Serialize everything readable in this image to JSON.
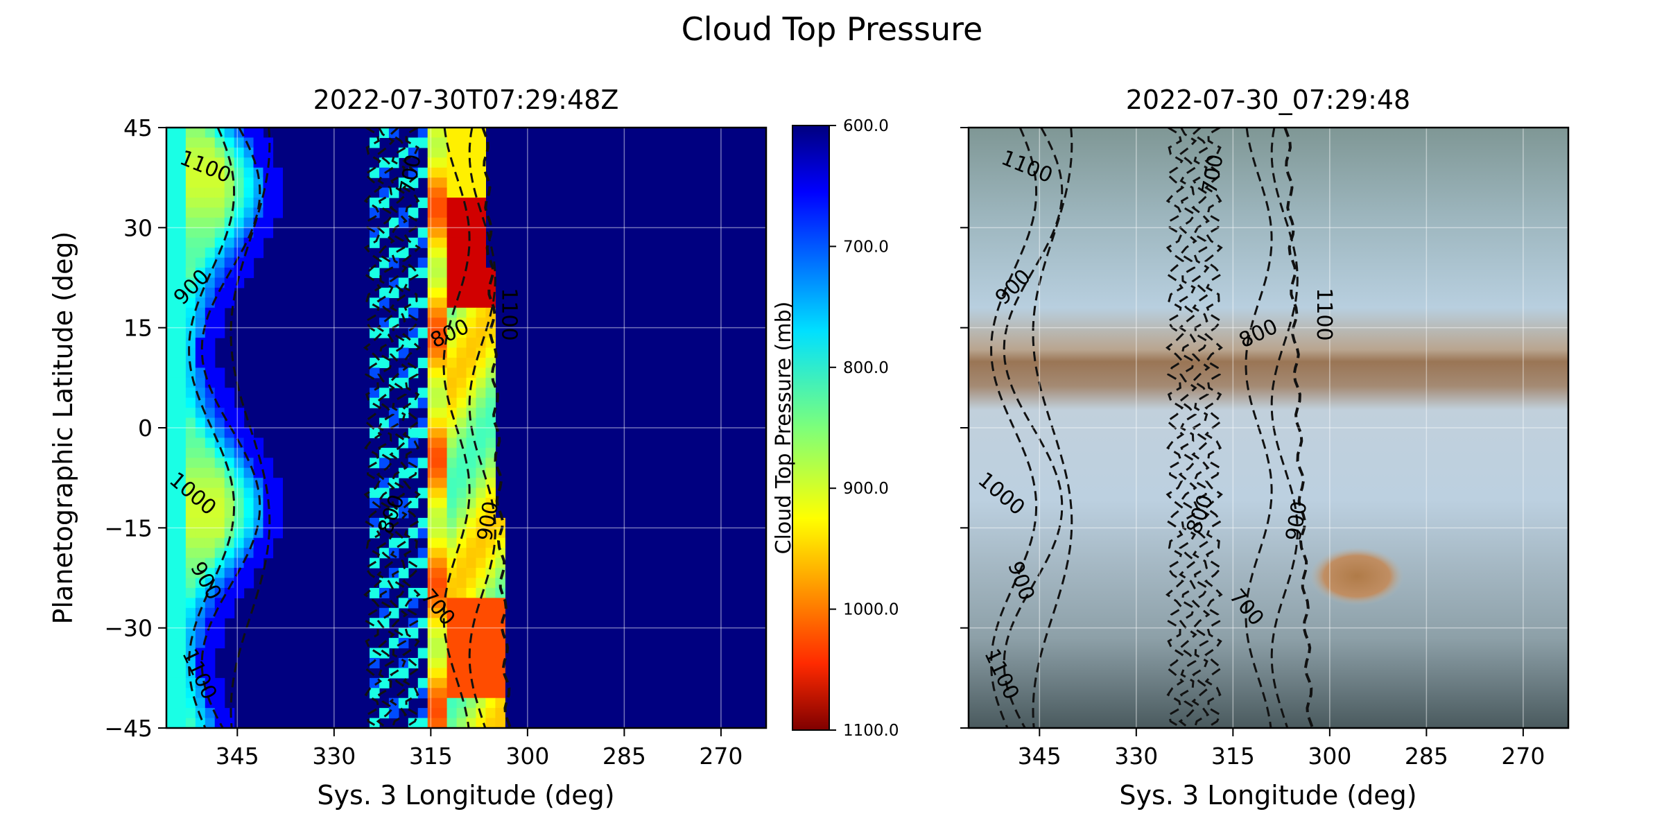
{
  "figure": {
    "suptitle": "Cloud Top Pressure"
  },
  "chart_data": [
    {
      "type": "heatmap",
      "title": "2022-07-30T07:29:48Z",
      "xlabel": "Sys. 3 Longitude (deg)",
      "ylabel": "Planetographic Latitude (deg)",
      "xlim": [
        356,
        263
      ],
      "ylim": [
        -45,
        45
      ],
      "xticks": [
        345,
        330,
        315,
        300,
        285,
        270
      ],
      "yticks": [
        45,
        30,
        15,
        0,
        -15,
        -30,
        -45
      ],
      "xtick_labels": [
        "345",
        "330",
        "315",
        "300",
        "285",
        "270"
      ],
      "ytick_labels": [
        "45",
        "30",
        "15",
        "0",
        "−15",
        "−30",
        "−45"
      ],
      "grid": true,
      "background_value": 1100,
      "colorbar": {
        "label": "Cloud Top Pressure (mb)",
        "min": 600,
        "max": 1100,
        "reversed": true,
        "ticks": [
          600,
          700,
          800,
          900,
          1000,
          1100
        ],
        "tick_labels": [
          "600.0",
          "700.0",
          "800.0",
          "900.0",
          "1000.0",
          "1100.0"
        ],
        "colormap": "jet"
      },
      "contour_levels": [
        700,
        800,
        900,
        1000,
        1100
      ],
      "contour_labels": [
        {
          "text": "1100",
          "lon": 350,
          "lat": 39,
          "rotate": 22
        },
        {
          "text": "900",
          "lon": 352,
          "lat": 21,
          "rotate": -45
        },
        {
          "text": "1000",
          "lon": 352,
          "lat": -10,
          "rotate": 40
        },
        {
          "text": "900",
          "lon": 350,
          "lat": -23,
          "rotate": 60
        },
        {
          "text": "1100",
          "lon": 351,
          "lat": -37,
          "rotate": 65
        },
        {
          "text": "700",
          "lon": 318,
          "lat": 38,
          "rotate": -80
        },
        {
          "text": "800",
          "lon": 312,
          "lat": 14,
          "rotate": -25
        },
        {
          "text": "1100",
          "lon": 303,
          "lat": 17,
          "rotate": 90
        },
        {
          "text": "900",
          "lon": 306,
          "lat": -14,
          "rotate": -80
        },
        {
          "text": "700",
          "lon": 314,
          "lat": -27,
          "rotate": 50
        },
        {
          "text": "800",
          "lon": 321,
          "lat": -13,
          "rotate": -70
        }
      ]
    },
    {
      "type": "heatmap",
      "title": "2022-07-30_07:29:48",
      "xlabel": "Sys. 3 Longitude (deg)",
      "ylabel": "",
      "xlim": [
        356,
        263
      ],
      "ylim": [
        -45,
        45
      ],
      "xticks": [
        345,
        330,
        315,
        300,
        285,
        270
      ],
      "yticks": [
        45,
        30,
        15,
        0,
        -15,
        -30,
        -45
      ],
      "xtick_labels": [
        "345",
        "330",
        "315",
        "300",
        "285",
        "270"
      ],
      "grid": true,
      "contour_levels": [
        700,
        800,
        900,
        1000,
        1100
      ],
      "contour_labels": [
        {
          "text": "1100",
          "lon": 347,
          "lat": 39,
          "rotate": 22
        },
        {
          "text": "900",
          "lon": 349,
          "lat": 21,
          "rotate": -45
        },
        {
          "text": "1000",
          "lon": 351,
          "lat": -10,
          "rotate": 40
        },
        {
          "text": "900",
          "lon": 348,
          "lat": -23,
          "rotate": 70
        },
        {
          "text": "1100",
          "lon": 351,
          "lat": -37,
          "rotate": 65
        },
        {
          "text": "700",
          "lon": 318,
          "lat": 38,
          "rotate": -80
        },
        {
          "text": "800",
          "lon": 311,
          "lat": 14,
          "rotate": -25
        },
        {
          "text": "1100",
          "lon": 301,
          "lat": 17,
          "rotate": 90
        },
        {
          "text": "900",
          "lon": 305,
          "lat": -14,
          "rotate": -80
        },
        {
          "text": "700",
          "lon": 313,
          "lat": -27,
          "rotate": 50
        },
        {
          "text": "800",
          "lon": 320,
          "lat": -13,
          "rotate": -70
        }
      ]
    }
  ]
}
